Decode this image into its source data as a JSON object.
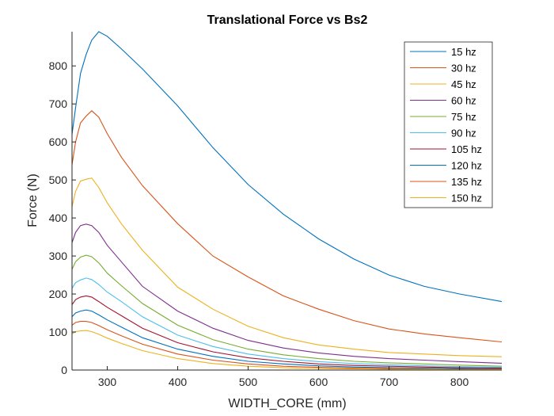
{
  "chart_data": {
    "type": "line",
    "title": "Translational Force vs Bs2",
    "xlabel": "WIDTH_CORE (mm)",
    "ylabel": "Force (N)",
    "xlim": [
      250,
      860
    ],
    "ylim": [
      0,
      890
    ],
    "xticks": [
      300,
      400,
      500,
      600,
      700,
      800
    ],
    "yticks": [
      0,
      100,
      200,
      300,
      400,
      500,
      600,
      700,
      800
    ],
    "grid": false,
    "legend_location": "top-right",
    "x": [
      250,
      255,
      262,
      270,
      278,
      288,
      300,
      320,
      350,
      400,
      450,
      500,
      550,
      600,
      650,
      700,
      750,
      800,
      860
    ],
    "series": [
      {
        "name": "15 hz",
        "color": "#0072BD",
        "values": [
          620,
          690,
          780,
          830,
          868,
          890,
          878,
          845,
          792,
          695,
          585,
          488,
          410,
          345,
          292,
          250,
          220,
          200,
          180
        ]
      },
      {
        "name": "30 hz",
        "color": "#D95319",
        "values": [
          540,
          600,
          650,
          668,
          682,
          665,
          622,
          560,
          485,
          385,
          300,
          245,
          195,
          160,
          130,
          108,
          95,
          85,
          74
        ]
      },
      {
        "name": "45 hz",
        "color": "#EDB120",
        "values": [
          430,
          470,
          497,
          502,
          505,
          480,
          440,
          385,
          315,
          218,
          160,
          115,
          85,
          66,
          55,
          46,
          42,
          38,
          35
        ]
      },
      {
        "name": "60 hz",
        "color": "#7E2F8E",
        "values": [
          335,
          362,
          380,
          384,
          380,
          362,
          328,
          285,
          220,
          155,
          110,
          78,
          58,
          45,
          36,
          30,
          26,
          22,
          18
        ]
      },
      {
        "name": "75 hz",
        "color": "#77AC30",
        "values": [
          265,
          285,
          297,
          302,
          298,
          282,
          255,
          222,
          175,
          118,
          80,
          55,
          40,
          30,
          23,
          19,
          16,
          13,
          10
        ]
      },
      {
        "name": "90 hz",
        "color": "#4DBEEE",
        "values": [
          215,
          230,
          237,
          242,
          238,
          225,
          205,
          180,
          140,
          92,
          62,
          42,
          30,
          22,
          17,
          14,
          11,
          9,
          7
        ]
      },
      {
        "name": "105 hz",
        "color": "#A2142F",
        "values": [
          172,
          185,
          192,
          195,
          192,
          180,
          165,
          143,
          110,
          72,
          48,
          32,
          23,
          16,
          12,
          10,
          8,
          6,
          5
        ]
      },
      {
        "name": "120 hz",
        "color": "#0072BD",
        "values": [
          140,
          150,
          155,
          158,
          155,
          145,
          132,
          113,
          85,
          55,
          36,
          23,
          16,
          11,
          8,
          6,
          5,
          4,
          3
        ]
      },
      {
        "name": "135 hz",
        "color": "#D95319",
        "values": [
          118,
          125,
          128,
          128,
          125,
          117,
          106,
          90,
          68,
          42,
          26,
          16,
          10,
          7,
          5,
          4,
          3,
          2,
          2
        ]
      },
      {
        "name": "150 hz",
        "color": "#EDB120",
        "values": [
          95,
          101,
          103,
          104,
          101,
          94,
          84,
          70,
          51,
          30,
          17,
          10,
          6,
          4,
          3,
          2,
          2,
          1,
          1
        ]
      }
    ]
  }
}
